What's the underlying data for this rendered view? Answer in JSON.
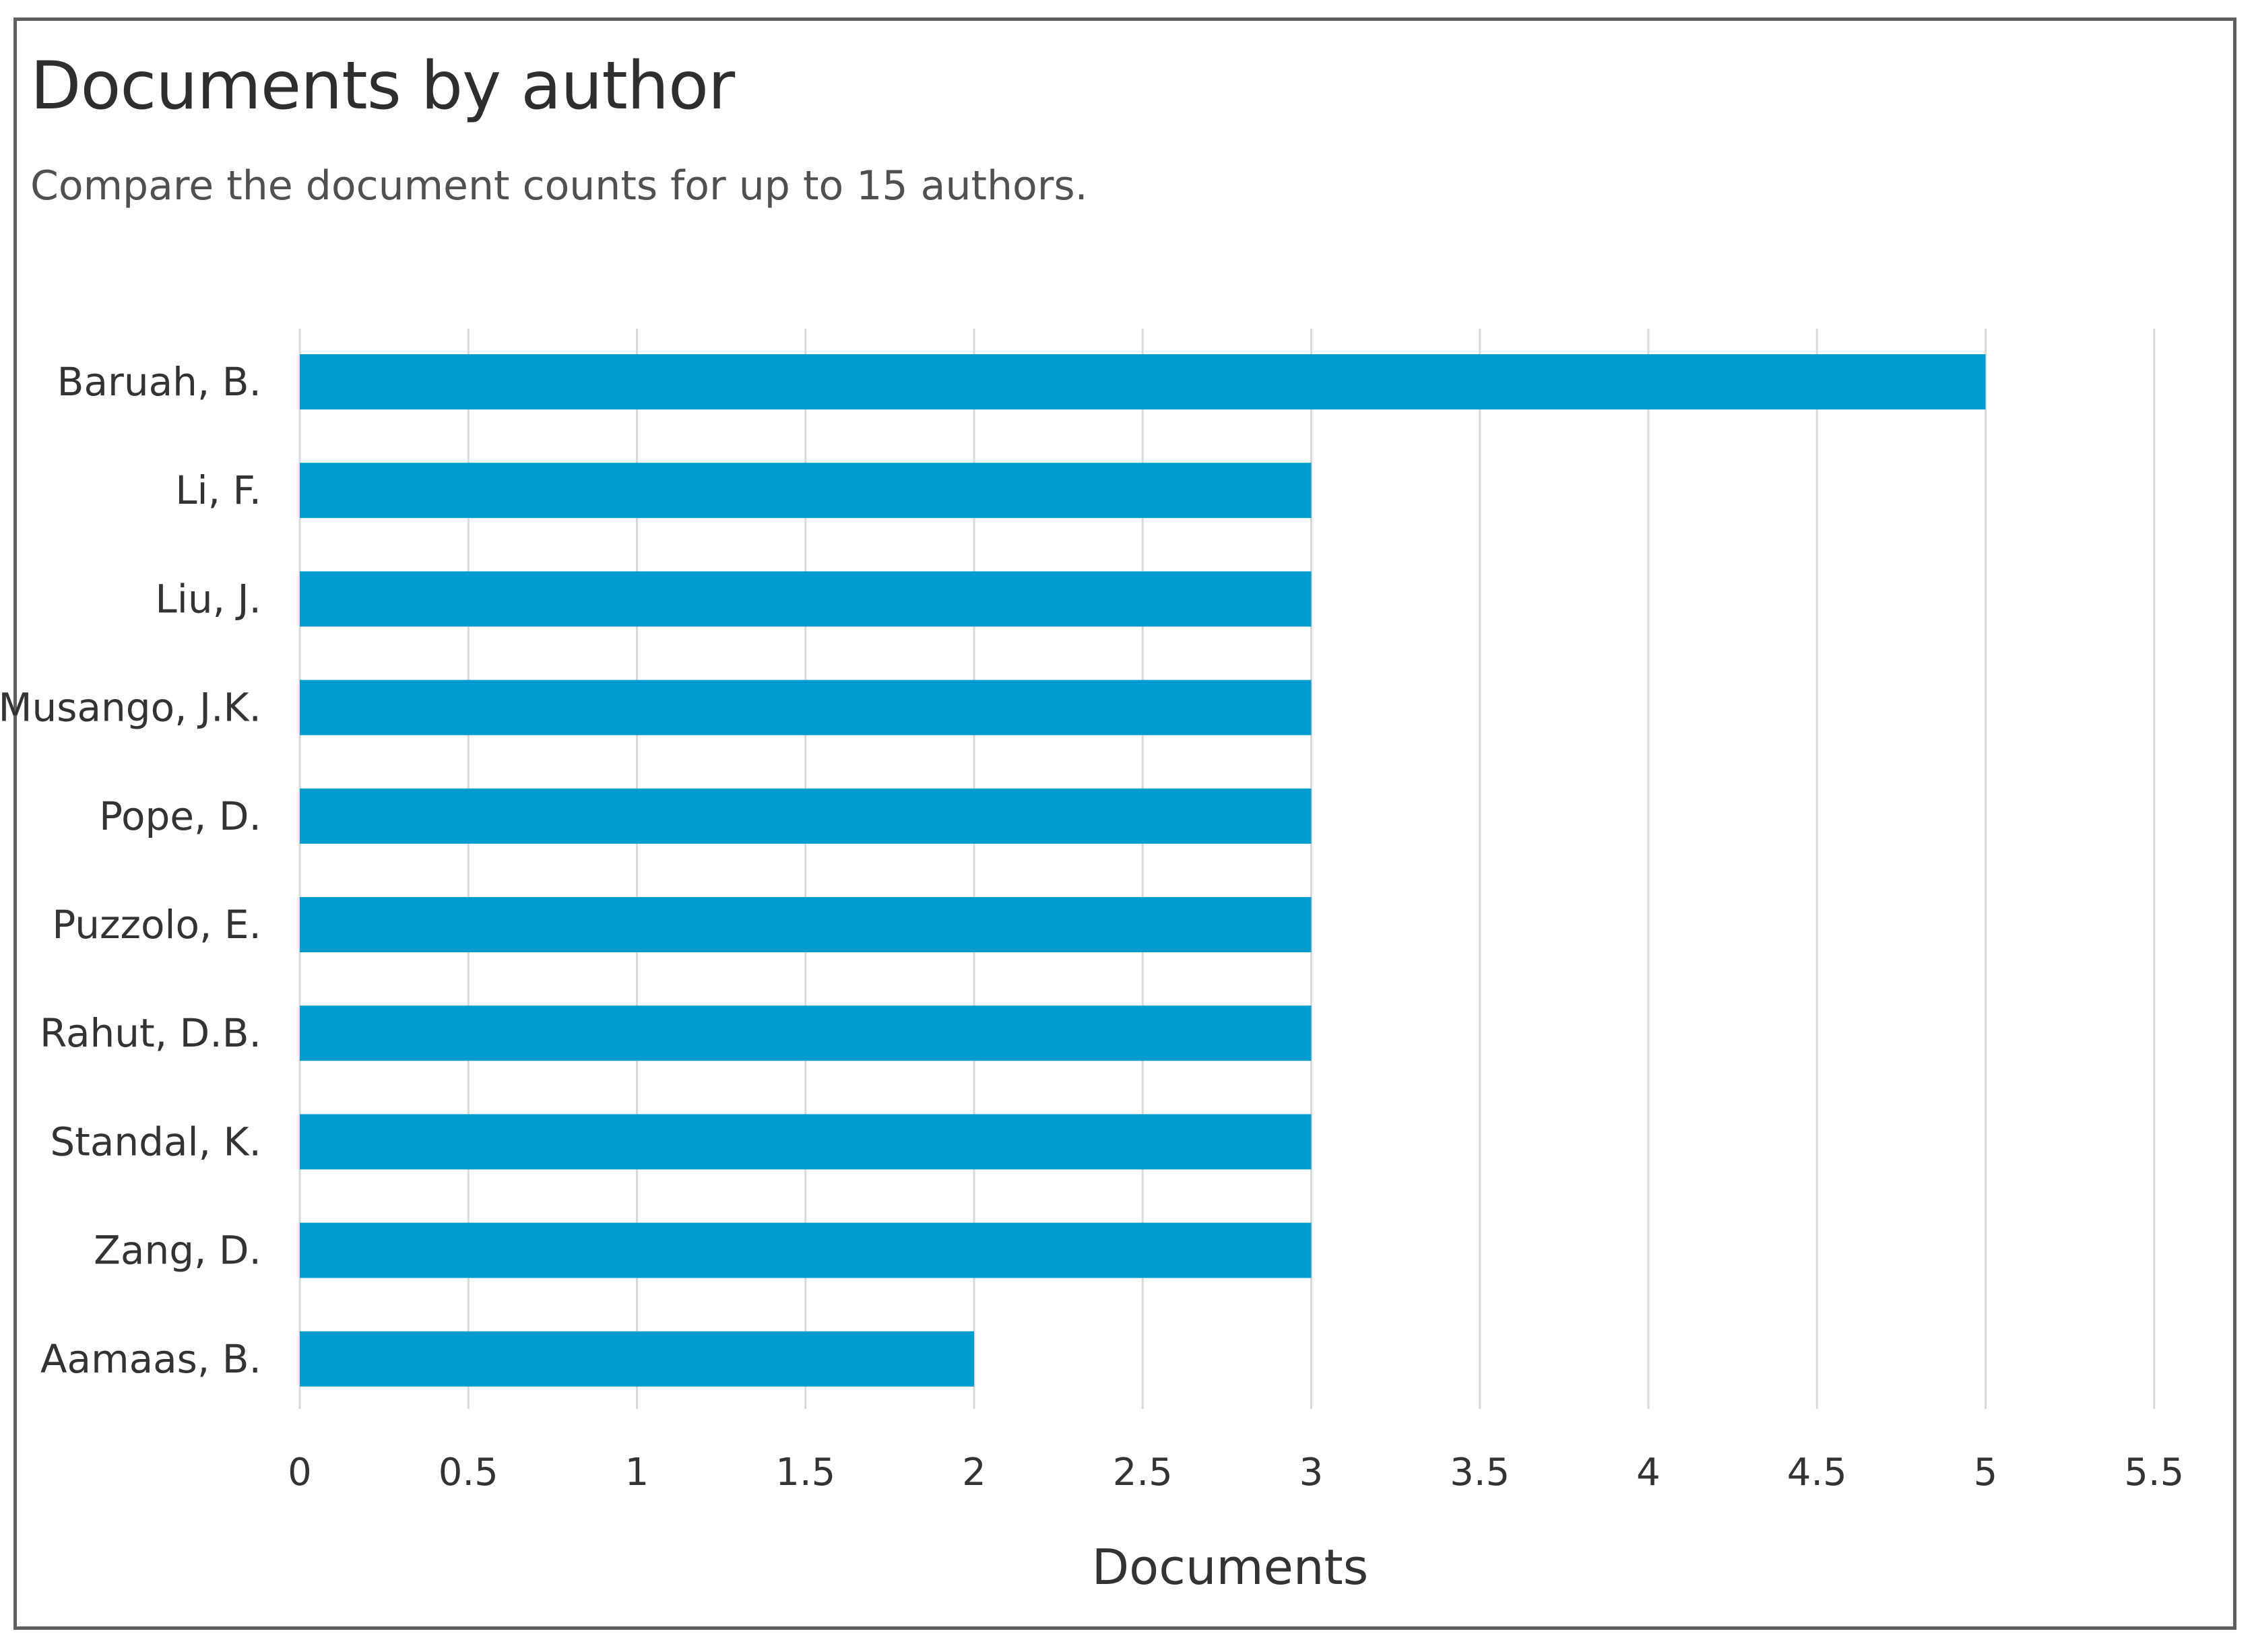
{
  "header": {
    "title": "Documents by author",
    "subtitle": "Compare the document counts for up to 15 authors."
  },
  "colors": {
    "bar": "#009ccf",
    "grid": "#d9d9d9",
    "frame": "#5f5f5f"
  },
  "chart_data": {
    "type": "bar",
    "orientation": "horizontal",
    "categories": [
      "Baruah, B.",
      "Li, F.",
      "Liu, J.",
      "Musango, J.K.",
      "Pope, D.",
      "Puzzolo, E.",
      "Rahut, D.B.",
      "Standal, K.",
      "Zang, D.",
      "Aamaas, B."
    ],
    "values": [
      5,
      3,
      3,
      3,
      3,
      3,
      3,
      3,
      3,
      2
    ],
    "xlabel": "Documents",
    "ylabel": "",
    "xlim": [
      0,
      5.5
    ],
    "xticks": [
      0,
      0.5,
      1,
      1.5,
      2,
      2.5,
      3,
      3.5,
      4,
      4.5,
      5,
      5.5
    ],
    "xtick_labels": [
      "0",
      "0.5",
      "1",
      "1.5",
      "2",
      "2.5",
      "3",
      "3.5",
      "4",
      "4.5",
      "5",
      "5.5"
    ],
    "grid": "vertical",
    "legend": "none"
  }
}
